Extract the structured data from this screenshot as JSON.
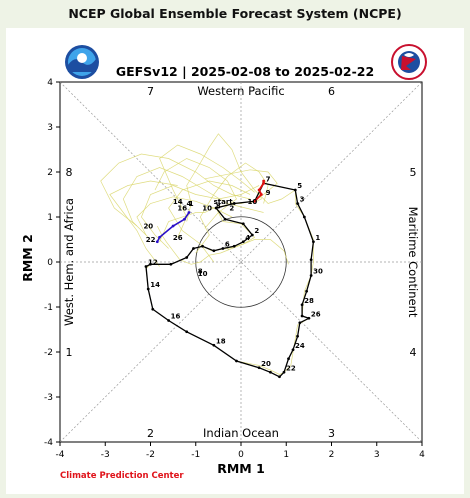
{
  "header": {
    "title": "NCEP Global Ensemble Forecast System (NCPE)"
  },
  "footer": {
    "credit": "Climate Prediction Center"
  },
  "colors": {
    "background": "#eef3e6",
    "credit": "#e0141b",
    "observed": "#e01010",
    "recent": "#2a10c8",
    "forecast": "#000000",
    "members": "#d9d66a"
  },
  "logos": {
    "left": "NOAA",
    "right": "NATIONAL WEATHER SERVICE"
  },
  "chart_data": {
    "type": "line",
    "title": "GEFSv12 | 2025-02-08 to 2025-02-22",
    "xlabel": "RMM 1",
    "ylabel": "RMM 2",
    "xlim": [
      -4,
      4
    ],
    "ylim": [
      -4,
      4
    ],
    "xticks": [
      "-4",
      "-3",
      "-2",
      "-1",
      "0",
      "1",
      "2",
      "3",
      "4"
    ],
    "yticks": [
      "-4",
      "-3",
      "-2",
      "-1",
      "0",
      "1",
      "2",
      "3",
      "4"
    ],
    "grid": false,
    "phase_numbers": [
      {
        "label": "7",
        "x": -2,
        "y": 3.8
      },
      {
        "label": "6",
        "x": 2,
        "y": 3.8
      },
      {
        "label": "8",
        "x": -3.8,
        "y": 2
      },
      {
        "label": "5",
        "x": 3.8,
        "y": 2
      },
      {
        "label": "1",
        "x": -3.8,
        "y": -2
      },
      {
        "label": "4",
        "x": 3.8,
        "y": -2
      },
      {
        "label": "2",
        "x": -2,
        "y": -3.8
      },
      {
        "label": "3",
        "x": 2,
        "y": -3.8
      }
    ],
    "regions": {
      "top": "Western Pacific",
      "bottom": "Indian Ocean",
      "left": "West. Hem. and Africa",
      "right": "Maritime Continent"
    },
    "series": [
      {
        "name": "",
        "points": [
          {
            "x": 1.05,
            "y": -0.05
          },
          {
            "x": 0.95,
            "y": 0.25
          },
          {
            "x": 0.65,
            "y": 0.5
          },
          {
            "x": 0.3,
            "y": 0.5
          },
          {
            "x": 0.05,
            "y": 0.4
          },
          {
            "x": -0.2,
            "y": 0.3
          },
          {
            "x": -0.45,
            "y": 0.2
          },
          {
            "x": -0.7,
            "y": 0.15
          },
          {
            "x": -0.9,
            "y": 0.0
          },
          {
            "x": -1.1,
            "y": -0.05
          },
          {
            "x": -1.35,
            "y": 0.05
          },
          {
            "x": -1.5,
            "y": 0.25
          },
          {
            "x": -1.65,
            "y": 0.45
          },
          {
            "x": -1.75,
            "y": 0.6
          },
          {
            "x": -1.85,
            "y": 0.8
          }
        ]
      },
      {
        "name": "",
        "points": [
          {
            "x": -1.2,
            "y": 0.9
          },
          {
            "x": -1.1,
            "y": 1.3
          },
          {
            "x": -1.2,
            "y": 1.7
          },
          {
            "x": -0.9,
            "y": 2.2
          },
          {
            "x": -0.7,
            "y": 2.55
          },
          {
            "x": -0.5,
            "y": 2.85
          },
          {
            "x": -0.2,
            "y": 2.5
          },
          {
            "x": 0.0,
            "y": 2.0
          },
          {
            "x": 0.3,
            "y": 1.6
          },
          {
            "x": 0.6,
            "y": 1.3
          },
          {
            "x": 0.9,
            "y": 1.4
          },
          {
            "x": 1.2,
            "y": 1.6
          }
        ]
      },
      {
        "name": "",
        "points": [
          {
            "x": -2.3,
            "y": 0.8
          },
          {
            "x": -2.8,
            "y": 1.2
          },
          {
            "x": -3.1,
            "y": 1.8
          },
          {
            "x": -2.7,
            "y": 2.2
          },
          {
            "x": -2.2,
            "y": 2.4
          },
          {
            "x": -1.6,
            "y": 2.3
          },
          {
            "x": -1.0,
            "y": 2.0
          },
          {
            "x": -0.6,
            "y": 1.7
          },
          {
            "x": -0.2,
            "y": 1.5
          },
          {
            "x": 0.2,
            "y": 1.4
          }
        ]
      },
      {
        "name": "",
        "points": [
          {
            "x": -2.0,
            "y": 0.5
          },
          {
            "x": -2.4,
            "y": 0.9
          },
          {
            "x": -2.6,
            "y": 1.4
          },
          {
            "x": -2.3,
            "y": 1.9
          },
          {
            "x": -1.8,
            "y": 2.1
          },
          {
            "x": -1.3,
            "y": 1.9
          },
          {
            "x": -0.8,
            "y": 1.6
          },
          {
            "x": -0.3,
            "y": 1.3
          },
          {
            "x": 0.1,
            "y": 1.2
          },
          {
            "x": 0.5,
            "y": 1.1
          }
        ]
      },
      {
        "name": "",
        "points": [
          {
            "x": -1.0,
            "y": 0.2
          },
          {
            "x": -0.7,
            "y": 0.6
          },
          {
            "x": -0.9,
            "y": 1.0
          },
          {
            "x": -0.6,
            "y": 1.5
          },
          {
            "x": -0.3,
            "y": 1.9
          },
          {
            "x": 0.1,
            "y": 2.2
          },
          {
            "x": 0.4,
            "y": 2.0
          },
          {
            "x": 0.6,
            "y": 1.7
          },
          {
            "x": 0.5,
            "y": 1.3
          }
        ]
      },
      {
        "name": "",
        "points": [
          {
            "x": -1.6,
            "y": 0.3
          },
          {
            "x": -1.9,
            "y": 0.6
          },
          {
            "x": -2.2,
            "y": 1.0
          },
          {
            "x": -2.0,
            "y": 1.5
          },
          {
            "x": -1.5,
            "y": 1.7
          },
          {
            "x": -1.0,
            "y": 1.5
          },
          {
            "x": -0.5,
            "y": 1.4
          },
          {
            "x": 0.0,
            "y": 1.5
          },
          {
            "x": 0.4,
            "y": 1.7
          }
        ]
      },
      {
        "name": "",
        "points": [
          {
            "x": -0.6,
            "y": 0.0
          },
          {
            "x": -0.9,
            "y": 0.4
          },
          {
            "x": -1.3,
            "y": 0.7
          },
          {
            "x": -1.6,
            "y": 1.2
          },
          {
            "x": -1.3,
            "y": 1.6
          },
          {
            "x": -0.7,
            "y": 1.8
          },
          {
            "x": -0.2,
            "y": 1.7
          },
          {
            "x": 0.2,
            "y": 1.5
          }
        ]
      },
      {
        "name": "",
        "points": [
          {
            "x": -1.4,
            "y": 0.55
          },
          {
            "x": -1.2,
            "y": 1.0
          },
          {
            "x": -1.5,
            "y": 1.6
          },
          {
            "x": -1.8,
            "y": 2.3
          },
          {
            "x": -1.4,
            "y": 2.6
          },
          {
            "x": -0.9,
            "y": 2.4
          },
          {
            "x": -0.4,
            "y": 2.1
          },
          {
            "x": 0.0,
            "y": 1.8
          },
          {
            "x": 0.3,
            "y": 1.55
          }
        ]
      },
      {
        "name": "",
        "points": [
          {
            "x": -0.8,
            "y": 0.75
          },
          {
            "x": -0.5,
            "y": 1.1
          },
          {
            "x": -0.1,
            "y": 1.4
          },
          {
            "x": -0.3,
            "y": 1.8
          },
          {
            "x": -0.7,
            "y": 2.1
          },
          {
            "x": -1.2,
            "y": 2.3
          },
          {
            "x": -1.7,
            "y": 2.0
          },
          {
            "x": -1.9,
            "y": 1.6
          }
        ]
      },
      {
        "name": "",
        "points": [
          {
            "x": -1.8,
            "y": -0.1
          },
          {
            "x": -2.1,
            "y": 0.3
          },
          {
            "x": -2.3,
            "y": 0.7
          },
          {
            "x": -2.6,
            "y": 1.1
          },
          {
            "x": -2.9,
            "y": 1.5
          },
          {
            "x": -2.5,
            "y": 1.7
          },
          {
            "x": -2.0,
            "y": 1.8
          },
          {
            "x": -1.4,
            "y": 1.7
          }
        ]
      },
      {
        "name": "",
        "points": [
          {
            "x": 0.2,
            "y": 1.3
          },
          {
            "x": 0.5,
            "y": 1.5
          },
          {
            "x": 0.8,
            "y": 1.75
          },
          {
            "x": 0.6,
            "y": 2.0
          },
          {
            "x": 0.2,
            "y": 2.05
          },
          {
            "x": -0.3,
            "y": 1.95
          },
          {
            "x": -0.8,
            "y": 1.85
          }
        ]
      },
      {
        "name": "",
        "points": [
          {
            "x": -0.2,
            "y": 1.0
          },
          {
            "x": -0.6,
            "y": 1.2
          },
          {
            "x": -1.0,
            "y": 1.35
          },
          {
            "x": -1.5,
            "y": 1.45
          },
          {
            "x": -2.0,
            "y": 1.3
          },
          {
            "x": -2.3,
            "y": 1.0
          },
          {
            "x": -2.1,
            "y": 0.6
          }
        ]
      },
      {
        "name": "",
        "points": [
          {
            "x": -1.8,
            "y": 0.45
          },
          {
            "x": -1.6,
            "y": 0.9
          },
          {
            "x": -1.15,
            "y": 1.05
          },
          {
            "x": -1.0,
            "y": 1.1
          },
          {
            "x": -0.8,
            "y": 1.1
          },
          {
            "x": -0.7,
            "y": 1.15
          },
          {
            "x": -0.6,
            "y": 1.2
          },
          {
            "x": -0.4,
            "y": 1.25
          }
        ]
      },
      {
        "name": "",
        "points": [
          {
            "x": -0.4,
            "y": 1.25
          },
          {
            "x": -0.2,
            "y": 1.3
          },
          {
            "x": 0.0,
            "y": 1.3
          },
          {
            "x": 0.2,
            "y": 1.35
          },
          {
            "x": 0.35,
            "y": 1.35
          },
          {
            "x": 0.45,
            "y": 1.4
          },
          {
            "x": 0.4,
            "y": 1.55
          },
          {
            "x": 0.45,
            "y": 1.7
          },
          {
            "x": 0.5,
            "y": 1.8
          }
        ]
      },
      {
        "name": "",
        "points": [
          {
            "x": 0.5,
            "y": 1.75
          },
          {
            "x": 1.2,
            "y": 1.6
          },
          {
            "x": 1.2,
            "y": 1.3
          },
          {
            "x": 1.4,
            "y": 1.0
          },
          {
            "x": 1.6,
            "y": 0.5
          },
          {
            "x": 1.6,
            "y": 0.0
          },
          {
            "x": 1.55,
            "y": -0.3
          },
          {
            "x": 1.4,
            "y": -0.65
          },
          {
            "x": 1.35,
            "y": -1.2
          },
          {
            "x": 1.5,
            "y": -1.25
          },
          {
            "x": 1.25,
            "y": -1.4
          },
          {
            "x": 1.1,
            "y": -2.3
          },
          {
            "x": 0.95,
            "y": -2.45
          },
          {
            "x": 0.85,
            "y": -2.5
          },
          {
            "x": 0.65,
            "y": -2.4
          },
          {
            "x": 0.4,
            "y": -2.3
          },
          {
            "x": -0.1,
            "y": -2.2
          },
          {
            "x": -0.6,
            "y": -1.85
          },
          {
            "x": -1.2,
            "y": -1.55
          },
          {
            "x": -1.6,
            "y": -1.3
          },
          {
            "x": -1.95,
            "y": -1.05
          },
          {
            "x": -2.05,
            "y": -0.6
          },
          {
            "x": -2.1,
            "y": -0.15
          },
          {
            "x": -2.0,
            "y": -0.05
          },
          {
            "x": -1.55,
            "y": -0.05
          },
          {
            "x": -1.2,
            "y": 0.1
          },
          {
            "x": -1.05,
            "y": 0.3
          },
          {
            "x": -0.85,
            "y": 0.35
          },
          {
            "x": -0.65,
            "y": 0.25
          },
          {
            "x": -0.3,
            "y": 0.3
          },
          {
            "x": -0.1,
            "y": 0.35
          },
          {
            "x": 0.05,
            "y": 0.4
          },
          {
            "x": 0.3,
            "y": 0.55
          },
          {
            "x": 0.0,
            "y": 0.85
          },
          {
            "x": -0.4,
            "y": 0.9
          },
          {
            "x": -0.55,
            "y": 1.2
          },
          {
            "x": -0.15,
            "y": 1.3
          },
          {
            "x": 0.3,
            "y": 1.35
          },
          {
            "x": 0.5,
            "y": 1.75
          }
        ]
      }
    ],
    "observed": [
      {
        "x": 0.3,
        "y": 1.35
      },
      {
        "x": 0.45,
        "y": 1.5
      },
      {
        "x": 0.4,
        "y": 1.6
      },
      {
        "x": 0.5,
        "y": 1.75
      },
      {
        "x": 0.5,
        "y": 1.8
      }
    ],
    "recent": [
      {
        "x": -1.85,
        "y": 0.45
      },
      {
        "x": -1.8,
        "y": 0.55
      },
      {
        "x": -1.5,
        "y": 0.8
      },
      {
        "x": -1.25,
        "y": 0.95
      },
      {
        "x": -1.15,
        "y": 1.1
      }
    ],
    "forecast": [
      {
        "x": -0.15,
        "y": 1.3
      },
      {
        "x": 0.3,
        "y": 1.35
      },
      {
        "x": 0.5,
        "y": 1.75
      },
      {
        "x": 1.2,
        "y": 1.6
      },
      {
        "x": 1.25,
        "y": 1.3
      },
      {
        "x": 1.4,
        "y": 1.0
      },
      {
        "x": 1.6,
        "y": 0.45
      },
      {
        "x": 1.55,
        "y": 0.05
      },
      {
        "x": 1.55,
        "y": -0.3
      },
      {
        "x": 1.45,
        "y": -0.65
      },
      {
        "x": 1.35,
        "y": -0.95
      },
      {
        "x": 1.35,
        "y": -1.2
      },
      {
        "x": 1.5,
        "y": -1.25
      },
      {
        "x": 1.3,
        "y": -1.35
      },
      {
        "x": 1.25,
        "y": -1.65
      },
      {
        "x": 1.15,
        "y": -1.95
      },
      {
        "x": 1.05,
        "y": -2.15
      },
      {
        "x": 0.95,
        "y": -2.45
      },
      {
        "x": 0.85,
        "y": -2.55
      },
      {
        "x": 0.65,
        "y": -2.45
      },
      {
        "x": 0.4,
        "y": -2.35
      },
      {
        "x": -0.1,
        "y": -2.2
      },
      {
        "x": -0.6,
        "y": -1.85
      },
      {
        "x": -1.2,
        "y": -1.55
      },
      {
        "x": -1.6,
        "y": -1.3
      },
      {
        "x": -1.95,
        "y": -1.05
      },
      {
        "x": -2.05,
        "y": -0.6
      },
      {
        "x": -2.1,
        "y": -0.1
      },
      {
        "x": -2.0,
        "y": -0.05
      },
      {
        "x": -1.55,
        "y": -0.05
      },
      {
        "x": -1.2,
        "y": 0.1
      },
      {
        "x": -1.05,
        "y": 0.3
      },
      {
        "x": -0.85,
        "y": 0.35
      },
      {
        "x": -0.6,
        "y": 0.25
      },
      {
        "x": -0.4,
        "y": 0.3
      },
      {
        "x": -0.15,
        "y": 0.35
      },
      {
        "x": 0.05,
        "y": 0.45
      },
      {
        "x": 0.25,
        "y": 0.6
      },
      {
        "x": 0.05,
        "y": 0.85
      },
      {
        "x": -0.35,
        "y": 0.95
      },
      {
        "x": -0.55,
        "y": 1.2
      },
      {
        "x": -0.15,
        "y": 1.3
      }
    ],
    "point_labels": [
      {
        "text": "start",
        "x": -0.65,
        "y": 1.25
      },
      {
        "text": "10",
        "x": -0.9,
        "y": 1.1
      },
      {
        "text": "4",
        "x": -1.25,
        "y": 1.2
      },
      {
        "text": "26",
        "x": -1.55,
        "y": 0.45
      },
      {
        "text": "8",
        "x": -0.6,
        "y": 1.15
      },
      {
        "text": "16",
        "x": -1.45,
        "y": 1.1
      },
      {
        "text": "1",
        "x": -1.2,
        "y": 1.2
      },
      {
        "text": "2",
        "x": -0.3,
        "y": 1.1
      },
      {
        "text": "14",
        "x": -1.55,
        "y": 1.25
      },
      {
        "text": "20",
        "x": -2.2,
        "y": 0.7
      },
      {
        "text": "22",
        "x": -2.15,
        "y": 0.4
      },
      {
        "text": "7",
        "x": 0.5,
        "y": 1.75
      },
      {
        "text": "9",
        "x": 0.5,
        "y": 1.45
      },
      {
        "text": "10",
        "x": 0.1,
        "y": 1.25
      },
      {
        "text": "5",
        "x": 1.2,
        "y": 1.6
      },
      {
        "text": "3",
        "x": 1.25,
        "y": 1.3
      },
      {
        "text": "1",
        "x": 1.6,
        "y": 0.45
      },
      {
        "text": "30",
        "x": 1.55,
        "y": -0.3
      },
      {
        "text": "28",
        "x": 1.35,
        "y": -0.95
      },
      {
        "text": "26",
        "x": 1.5,
        "y": -1.25
      },
      {
        "text": "24",
        "x": 1.15,
        "y": -1.95
      },
      {
        "text": "22",
        "x": 0.95,
        "y": -2.45
      },
      {
        "text": "20",
        "x": 0.4,
        "y": -2.35
      },
      {
        "text": "18",
        "x": -0.6,
        "y": -1.85
      },
      {
        "text": "16",
        "x": -1.6,
        "y": -1.3
      },
      {
        "text": "14",
        "x": -2.05,
        "y": -0.6
      },
      {
        "text": "12",
        "x": -2.1,
        "y": -0.1
      },
      {
        "text": "10",
        "x": -1.0,
        "y": -0.35
      },
      {
        "text": "8",
        "x": -1.0,
        "y": -0.3
      },
      {
        "text": "6",
        "x": -0.4,
        "y": 0.3
      },
      {
        "text": "4",
        "x": 0.05,
        "y": 0.45
      },
      {
        "text": "2",
        "x": 0.25,
        "y": 0.6
      }
    ]
  }
}
